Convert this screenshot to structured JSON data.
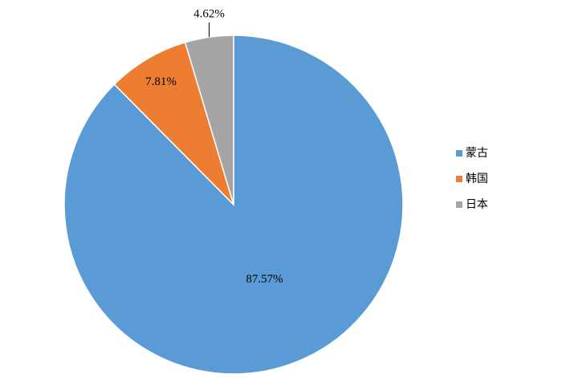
{
  "chart_data": {
    "type": "pie",
    "categories": [
      "蒙古",
      "韩国",
      "日本"
    ],
    "values": [
      87.57,
      7.81,
      4.62
    ],
    "value_labels": [
      "87.57%",
      "7.81%",
      "4.62%"
    ],
    "colors": [
      "#5b9bd5",
      "#ed7d31",
      "#a5a5a5"
    ],
    "legend": "right"
  }
}
